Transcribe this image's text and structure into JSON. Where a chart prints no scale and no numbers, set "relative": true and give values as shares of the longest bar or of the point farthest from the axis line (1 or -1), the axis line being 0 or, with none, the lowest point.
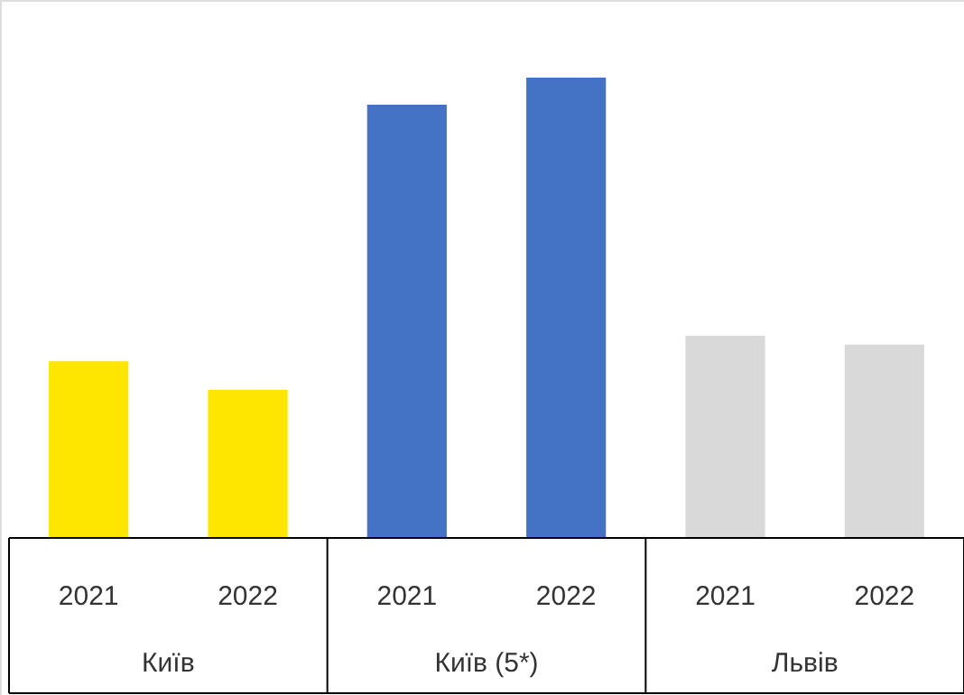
{
  "chart_data": {
    "type": "bar",
    "relative": true,
    "categories": [
      "2021",
      "2022",
      "2021",
      "2022",
      "2021",
      "2022"
    ],
    "values": [
      0.384,
      0.322,
      0.941,
      1,
      0.439,
      0.42
    ],
    "colors": [
      "#ffe600",
      "#ffe600",
      "#4472c4",
      "#4472c4",
      "#d9d9d9",
      "#d9d9d9"
    ],
    "annotations": [
      "Київ",
      "Київ (5*)",
      "Львів"
    ]
  }
}
